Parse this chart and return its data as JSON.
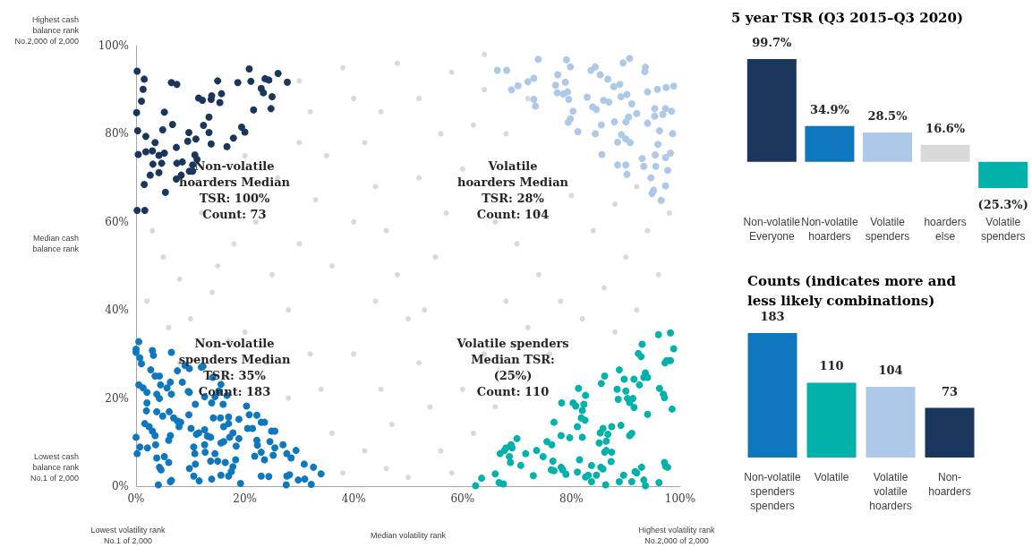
{
  "chart_data": [
    {
      "type": "scatter",
      "xlim": [
        0,
        100
      ],
      "ylim": [
        0,
        100
      ],
      "xticks": [
        {
          "value": 0,
          "label": "0%"
        },
        {
          "value": 20,
          "label": "20%"
        },
        {
          "value": 40,
          "label": "40%"
        },
        {
          "value": 60,
          "label": "60%"
        },
        {
          "value": 80,
          "label": "80%"
        },
        {
          "value": 100,
          "label": "100%"
        }
      ],
      "yticks": [
        {
          "value": 0,
          "label": "0%"
        },
        {
          "value": 20,
          "label": "20%"
        },
        {
          "value": 40,
          "label": "40%"
        },
        {
          "value": 60,
          "label": "60%"
        },
        {
          "value": 80,
          "label": "80%"
        },
        {
          "value": 100,
          "label": "100%"
        }
      ],
      "grid": false,
      "marker": "circle",
      "annotations": [
        "Highest cash\nbalance rank\nNo.2,000 of 2,000",
        "Median cash\nbalance rank",
        "Lowest cash\nbalance rank\nNo.1 of 2,000",
        "Lowest volatility rank\nNo.1 of 2,000",
        "Median volatility rank",
        "Highest volatility rank\nNo.2,000 of 2,000",
        "Non-volatile\nhoarders Median\nTSR: 100%\nCount: 73",
        "Volatile\nhoarders Median\nTSR: 28%\nCount: 104",
        "Non-volatile\nspenders Median\nTSR: 35%\nCount: 183",
        "Volatile spenders\nMedian TSR:\n(25%)\nCount: 110"
      ],
      "series": [
        {
          "color": "#d9d9d9",
          "x": [
            3,
            5,
            8,
            2,
            10,
            14,
            18,
            22,
            12,
            6,
            25,
            28,
            30,
            33,
            35,
            32,
            30,
            38,
            40,
            42,
            44,
            46,
            48,
            50,
            52,
            54,
            56,
            58,
            45,
            40,
            36,
            38,
            42,
            47,
            50,
            53,
            55,
            57,
            60,
            62,
            64,
            58,
            52,
            48,
            45,
            66,
            70,
            74,
            78,
            82,
            86,
            90,
            94,
            98,
            96,
            92,
            88,
            76,
            72,
            68,
            64,
            60,
            62,
            66,
            70,
            74,
            80,
            84,
            88,
            92,
            20,
            24,
            28,
            32,
            26,
            20,
            30,
            15,
            8,
            17,
            44,
            36,
            40,
            52,
            56,
            68,
            72,
            64,
            34,
            46
          ],
          "values": [
            58,
            52,
            47,
            42,
            38,
            44,
            55,
            60,
            62,
            36,
            48,
            40,
            55,
            65,
            75,
            85,
            92,
            95,
            88,
            78,
            68,
            58,
            48,
            38,
            28,
            18,
            8,
            3,
            22,
            30,
            12,
            3,
            8,
            14,
            2,
            40,
            52,
            62,
            72,
            82,
            90,
            94,
            88,
            96,
            85,
            60,
            55,
            48,
            42,
            38,
            45,
            52,
            58,
            62,
            48,
            40,
            35,
            30,
            36,
            42,
            30,
            22,
            12,
            18,
            25,
            62,
            66,
            58,
            64,
            68,
            35,
            28,
            20,
            30,
            70,
            75,
            78,
            50,
            28,
            33,
            42,
            50,
            60,
            70,
            80,
            80,
            88,
            98,
            22,
            4
          ]
        },
        {
          "color": "#1b365d",
          "x": [
            0.2,
            1.5,
            1.3,
            1.0,
            0.1,
            0.3,
            1.8,
            0.4,
            1.8,
            3.0,
            3.5,
            3.1,
            2.6,
            1.5,
            0.2,
            1.6,
            4.2,
            5.2,
            4.7,
            4.2,
            5.4,
            4.9,
            6.7,
            5.2,
            6.5,
            7.5,
            7.4,
            7.5,
            8.5,
            7.4,
            8.3,
            9.8,
            10.4,
            10.4,
            10.8,
            11.2,
            9.7,
            9.5,
            11.0,
            12.4,
            13.4,
            13.4,
            13.8,
            16.7,
            17.9,
            19.4,
            20.0,
            11.5,
            12.2,
            13.9,
            13.8,
            15.7,
            15.4,
            15.0,
            18.7,
            20.8,
            21.1,
            21.6,
            23.0,
            23.4,
            23.7,
            24.4,
            25.0,
            24.8,
            26.1,
            27.8
          ],
          "values": [
            94.2,
            92.4,
            90.1,
            87.4,
            84.8,
            80.7,
            79.4,
            75.3,
            75.9,
            76.1,
            78.0,
            73.1,
            70.6,
            68.5,
            62.6,
            62.6,
            75.1,
            75.6,
            73.3,
            71.2,
            66.7,
            80.9,
            82.1,
            84.9,
            91.6,
            91.2,
            76.9,
            73.3,
            73.6,
            69.7,
            70.6,
            71.5,
            71.5,
            72.9,
            75.2,
            74.2,
            80.3,
            78.3,
            78.8,
            81.9,
            83.8,
            80.3,
            77.7,
            77.1,
            79.0,
            81.5,
            80.4,
            88.1,
            87.6,
            88.6,
            87.8,
            89.1,
            87.1,
            92.0,
            91.6,
            94.7,
            91.9,
            85.4,
            90.3,
            89.3,
            92.5,
            92.2,
            88.4,
            85.7,
            93.7,
            91.7
          ]
        },
        {
          "color": "#aec9e8",
          "x": [
            66.4,
            68.1,
            69.0,
            70.2,
            72.0,
            73.1,
            73.9,
            73.1,
            73.4,
            77.1,
            77.5,
            77.4,
            78.5,
            78.9,
            79.3,
            79.1,
            79.8,
            79.5,
            80.3,
            79.8,
            79.4,
            81.2,
            82.9,
            83.6,
            84.4,
            85.3,
            86.7,
            85.9,
            86.9,
            83.9,
            84.6,
            85.5,
            84.4,
            85.6,
            87.8,
            88.9,
            89.5,
            90.7,
            93.6,
            93.5,
            89.1,
            90.2,
            91.1,
            92.0,
            90.5,
            90.0,
            87.9,
            94.0,
            94.0,
            95.8,
            97.4,
            98.8,
            95.3,
            95.3,
            96.8,
            97.3,
            98.4,
            96.2,
            98.6,
            89.2,
            88.5,
            90.0,
            90.8,
            95.9,
            98.2,
            97.3,
            95.4,
            93.0,
            93.3,
            95.5,
            97.7,
            88.5,
            90.0,
            90.2,
            94.6,
            97.3,
            95.1,
            94.8,
            96.5
          ],
          "values": [
            94.4,
            94.4,
            90.0,
            90.9,
            91.8,
            92.6,
            96.9,
            87.8,
            86.3,
            91.0,
            93.4,
            89.3,
            89.0,
            91.7,
            89.5,
            96.8,
            95.2,
            87.8,
            85.1,
            83.4,
            82.6,
            80.5,
            88.3,
            94.4,
            95.2,
            93.4,
            92.4,
            87.6,
            87.2,
            86.1,
            85.5,
            82.0,
            80.0,
            75.3,
            90.7,
            91.2,
            96.1,
            97.1,
            95.1,
            94.1,
            88.4,
            88.9,
            86.8,
            84.6,
            83.8,
            82.7,
            82.7,
            82.4,
            89.5,
            90.1,
            90.5,
            90.8,
            85.7,
            84.0,
            84.4,
            85.7,
            85.1,
            80.7,
            80.0,
            79.8,
            78.1,
            78.8,
            78.0,
            77.6,
            75.6,
            74.6,
            75.2,
            74.4,
            72.6,
            72.6,
            71.7,
            72.9,
            72.9,
            70.8,
            70.0,
            68.2,
            67.2,
            66.4,
            64.9
          ]
        },
        {
          "color": "#0e77bd",
          "x": [
            0.5,
            0.0,
            0.0,
            0.7,
            1.0,
            0.5,
            1.3,
            2.0,
            2.0,
            1.9,
            1.6,
            2.4,
            3.0,
            3.5,
            0.0,
            0.2,
            0.7,
            2.1,
            3.6,
            3.8,
            4.3,
            4.6,
            4.1,
            6.3,
            6.5,
            5.2,
            6.0,
            6.3,
            6.0,
            3.0,
            3.2,
            2.7,
            3.5,
            4.3,
            4.5,
            5.7,
            6.3,
            6.5,
            3.8,
            4.3,
            3.8,
            4.9,
            6.1,
            6.9,
            7.6,
            8.2,
            7.9,
            9.7,
            6.5,
            7.6,
            8.5,
            9.0,
            9.8,
            12.0,
            12.3,
            9.6,
            9.8,
            10.9,
            10.1,
            11.1,
            11.5,
            12.6,
            10.6,
            10.8,
            9.8,
            10.9,
            10.6,
            11.6,
            12.7,
            12.6,
            13.1,
            13.7,
            14.1,
            12.6,
            13.9,
            14.5,
            15.6,
            15.2,
            16.0,
            16.7,
            14.2,
            15.5,
            17.0,
            17.0,
            16.1,
            17.8,
            17.2,
            16.1,
            15.6,
            18.9,
            18.4,
            18.9,
            14.5,
            15.0,
            13.7,
            16.4,
            18.3,
            17.8,
            17.5,
            17.0,
            15.6,
            13.9,
            19.2,
            20.3,
            20.8,
            22.2,
            20.5,
            21.4,
            23.0,
            23.6,
            22.2,
            22.3,
            21.8,
            23.0,
            23.6,
            24.9,
            25.5,
            24.6,
            25.5,
            25.2,
            27.0,
            27.7,
            28.5,
            29.4,
            23.0,
            24.4,
            27.7,
            28.2,
            27.6,
            29.8,
            31.0,
            30.9,
            32.6,
            34.0,
            32.2
          ],
          "values": [
            32.8,
            31.1,
            30.4,
            29.1,
            27.8,
            23.0,
            22.3,
            21.3,
            18.9,
            17.1,
            14.2,
            13.5,
            12.5,
            11.5,
            11.1,
            7.4,
            8.9,
            8.7,
            9.4,
            6.4,
            4.3,
            3.7,
            0.3,
            1.0,
            1.3,
            6.7,
            5.4,
            11.5,
            10.4,
            30.8,
            29.7,
            26.4,
            25.0,
            25.0,
            23.0,
            22.3,
            23.6,
            20.9,
            20.9,
            19.9,
            16.9,
            15.9,
            16.9,
            15.5,
            14.8,
            14.5,
            13.5,
            16.2,
            30.4,
            26.2,
            23.6,
            27.4,
            26.7,
            27.0,
            27.2,
            21.5,
            21.3,
            18.6,
            13.1,
            11.8,
            12.1,
            12.8,
            8.9,
            7.4,
            4.0,
            5.0,
            2.3,
            1.2,
            7.7,
            9.4,
            11.4,
            11.1,
            24.7,
            20.3,
            18.9,
            20.3,
            23.1,
            21.6,
            18.6,
            20.6,
            15.5,
            15.5,
            15.7,
            14.2,
            13.5,
            12.1,
            11.1,
            10.1,
            9.8,
            10.8,
            9.1,
            15.2,
            7.4,
            5.7,
            5.7,
            5.4,
            6.0,
            4.4,
            3.3,
            2.3,
            2.5,
            1.6,
            0.6,
            18.2,
            16.2,
            16.1,
            13.1,
            13.1,
            14.5,
            14.5,
            10.4,
            9.3,
            6.8,
            7.7,
            6.0,
            12.5,
            12.5,
            10.1,
            8.7,
            7.0,
            9.4,
            7.4,
            6.4,
            8.1,
            2.3,
            2.2,
            2.3,
            2.6,
            0.3,
            1.4,
            1.6,
            5.0,
            4.3,
            2.8,
            0.4
          ]
        },
        {
          "color": "#00b2a9",
          "x": [
            62.4,
            63.5,
            66.0,
            66.7,
            67.5,
            66.9,
            67.7,
            68.0,
            68.9,
            69.1,
            70.0,
            68.6,
            68.8,
            70.7,
            71.6,
            73.0,
            73.6,
            74.8,
            75.5,
            76.4,
            76.6,
            76.3,
            76.8,
            78.1,
            78.4,
            79.0,
            78.1,
            79.7,
            81.1,
            82.0,
            81.5,
            81.1,
            82.6,
            83.1,
            83.7,
            83.7,
            84.6,
            76.8,
            78.2,
            80.3,
            80.8,
            82.3,
            82.0,
            82.6,
            81.3,
            81.8,
            82.5,
            85.3,
            85.8,
            86.7,
            86.4,
            87.4,
            89.1,
            85.1,
            86.1,
            86.4,
            87.4,
            85.4,
            85.8,
            87.3,
            86.3,
            88.8,
            89.6,
            91.1,
            91.7,
            92.9,
            92.0,
            93.3,
            93.6,
            96.1,
            97.1,
            97.7,
            97.3,
            90.7,
            91.1,
            94.0,
            98.5,
            96.9,
            97.1,
            96.2,
            88.4,
            90.0,
            88.6,
            90.3,
            91.3,
            90.7,
            91.5,
            89.7,
            91.5,
            88.8,
            85.5,
            86.1,
            92.5,
            93.3,
            93.6,
            94.0,
            92.3,
            92.8,
            93.0,
            96.0,
            98.2,
            98.8,
            97.5,
            98.2,
            97.2
          ],
          "values": [
            0.1,
            1.8,
            2.8,
            0.8,
            0.5,
            7.4,
            8.1,
            8.7,
            9.4,
            8.7,
            10.8,
            6.7,
            5.4,
            4.7,
            7.4,
            2.4,
            8.1,
            6.7,
            10.1,
            9.4,
            5.7,
            3.7,
            3.5,
            4.3,
            3.7,
            2.7,
            11.5,
            11.0,
            13.5,
            11.1,
            6.0,
            3.2,
            2.1,
            2.5,
            4.7,
            1.0,
            2.5,
            14.5,
            18.9,
            18.9,
            18.2,
            18.6,
            17.2,
            20.6,
            22.2,
            15.5,
            15.0,
            12.1,
            13.1,
            11.8,
            10.2,
            13.5,
            13.8,
            9.8,
            7.7,
            8.1,
            7.7,
            4.3,
            3.9,
            5.6,
            0.3,
            1.0,
            2.5,
            1.0,
            3.3,
            4.3,
            3.0,
            1.4,
            0.1,
            0.8,
            5.4,
            4.3,
            4.5,
            11.5,
            12.0,
            16.3,
            17.5,
            20.9,
            20.1,
            22.2,
            22.0,
            21.6,
            19.7,
            19.9,
            19.9,
            19.0,
            17.9,
            24.3,
            24.3,
            26.4,
            23.3,
            25.0,
            23.0,
            24.7,
            25.7,
            24.7,
            30.1,
            29.4,
            32.2,
            34.4,
            34.8,
            31.2,
            28.5,
            28.5,
            28.0
          ]
        }
      ]
    },
    {
      "type": "bar",
      "title": "5 year TSR (Q3 2015–Q3 2020)",
      "categories": [
        "Non-volatile\nEveryone",
        "Non-volatile\nhoarders",
        "Volatile\nspenders",
        "hoarders\nelse",
        "Volatile\nspenders"
      ],
      "values": [
        99.7,
        34.9,
        28.5,
        16.6,
        -25.3
      ],
      "colors": [
        "#1b365d",
        "#0e77bd",
        "#aec9e8",
        "#d9d9d9",
        "#00b2a9"
      ],
      "value_labels": [
        "99.7%",
        "34.9%",
        "28.5%",
        "16.6%",
        "(25.3%)"
      ]
    },
    {
      "type": "bar",
      "title": "Counts (indicates more and\nless likely combinations)",
      "categories": [
        "Non-volatile\nspenders\nspenders",
        "Volatile",
        "Volatile\nvolatile\nhoarders",
        "Non-\nhoarders"
      ],
      "values": [
        183,
        110,
        104,
        73
      ],
      "colors": [
        "#0e77bd",
        "#00b2a9",
        "#aec9e8",
        "#1b365d"
      ],
      "data_labels": true
    }
  ]
}
